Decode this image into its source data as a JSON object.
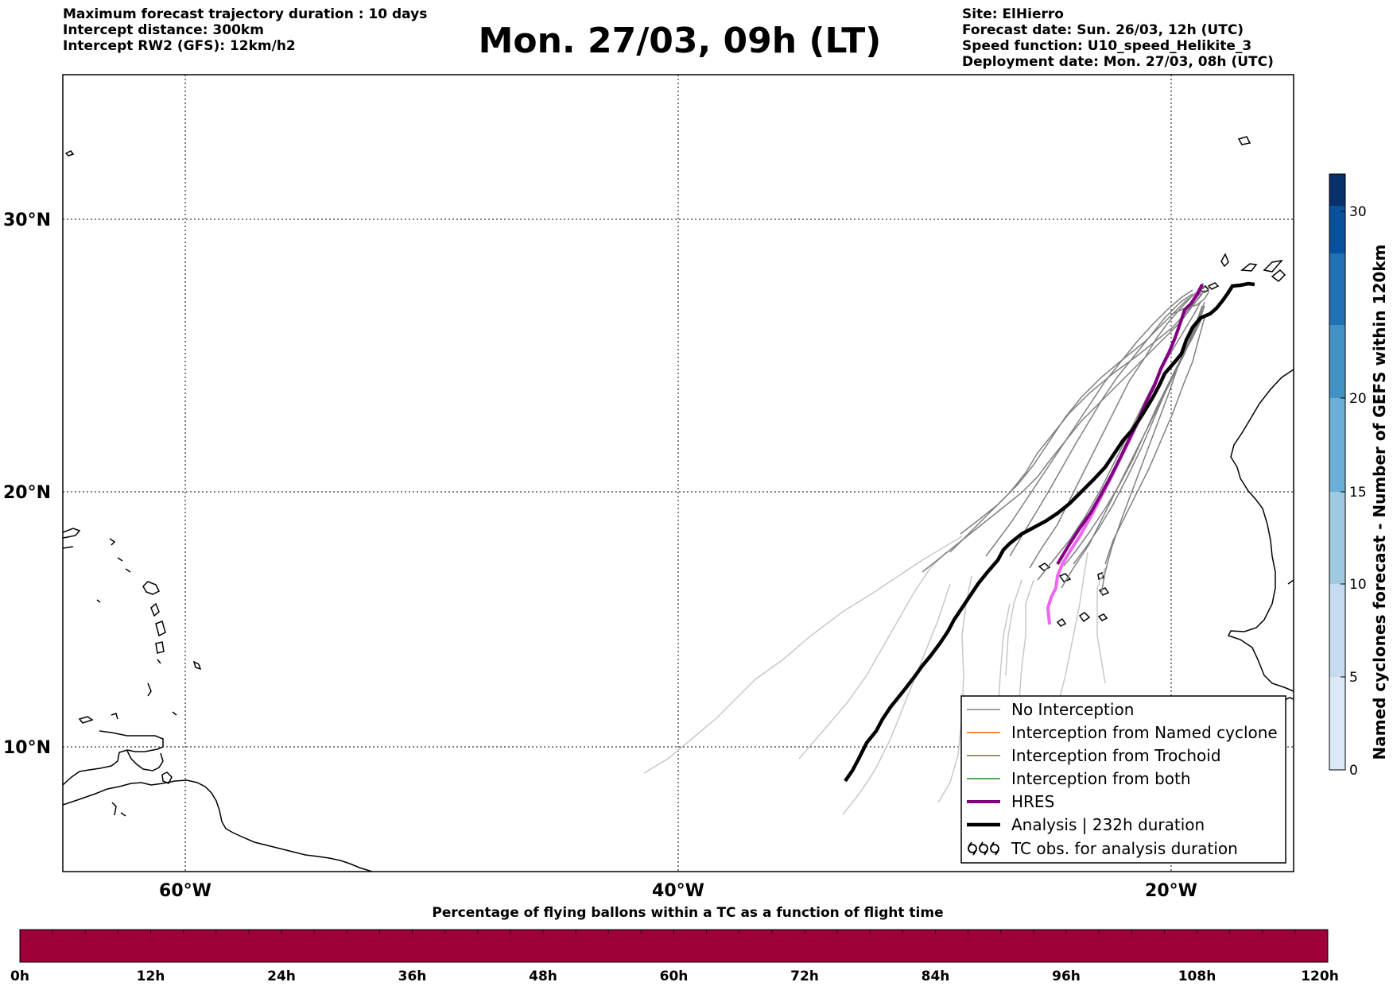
{
  "header": {
    "left": [
      "Maximum forecast trajectory duration : 10 days",
      "Intercept distance: 300km",
      "Intercept RW2 (GFS):  12km/h2"
    ],
    "title": "Mon. 27/03, 09h (LT)",
    "right": [
      "Site: ElHierro",
      "Forecast date: Sun. 26/03, 12h (UTC)",
      "Speed function: U10_speed_Helikite_3",
      "Deployment date: Mon. 27/03, 08h (UTC)"
    ]
  },
  "map": {
    "lat_labels": [
      "30°N",
      "20°N",
      "10°N"
    ],
    "lon_labels": [
      "60°W",
      "40°W",
      "20°W"
    ],
    "extent": {
      "lon_min": -65,
      "lon_max": -15,
      "lat_min": 5.4,
      "lat_max": 34.7
    },
    "gridlines": "dotted",
    "site": {
      "name": "ElHierro",
      "lon": -18.0,
      "lat": 27.7
    }
  },
  "legend": {
    "placement": "lower-right",
    "items": [
      {
        "label": "No Interception",
        "color": "#808080",
        "style": "thin"
      },
      {
        "label": "Interception from Named cyclone",
        "color": "#e8601c",
        "style": "thin"
      },
      {
        "label": "Interception from Trochoid",
        "color": "#808000",
        "style": "thin"
      },
      {
        "label": "Interception from both",
        "color": "#228b22",
        "style": "thin"
      },
      {
        "label": "HRES",
        "color": "#800080",
        "style": "thick"
      },
      {
        "label": "Analysis | 232h duration",
        "color": "#000000",
        "style": "thick"
      },
      {
        "label": "TC obs. for analysis duration",
        "color": "#000000",
        "style": "cyclone-symbols"
      }
    ]
  },
  "colorbar_right": {
    "label": "Named cyclones forecast - Number of GEFS within 120km",
    "ticks": [
      "0",
      "5",
      "10",
      "15",
      "20",
      "30"
    ],
    "max": 32,
    "colors": [
      "#dbe9f6",
      "#c6dbef",
      "#9ecae1",
      "#6baed6",
      "#4292c6",
      "#2171b5",
      "#08519c",
      "#08306b"
    ]
  },
  "timebar": {
    "title": "Percentage of flying ballons within a TC as a function of flight time",
    "ticks": [
      "0h",
      "12h",
      "24h",
      "36h",
      "48h",
      "60h",
      "72h",
      "84h",
      "96h",
      "108h",
      "120h"
    ],
    "fill_color": "#9e003a",
    "percent_within_tc": 100
  }
}
